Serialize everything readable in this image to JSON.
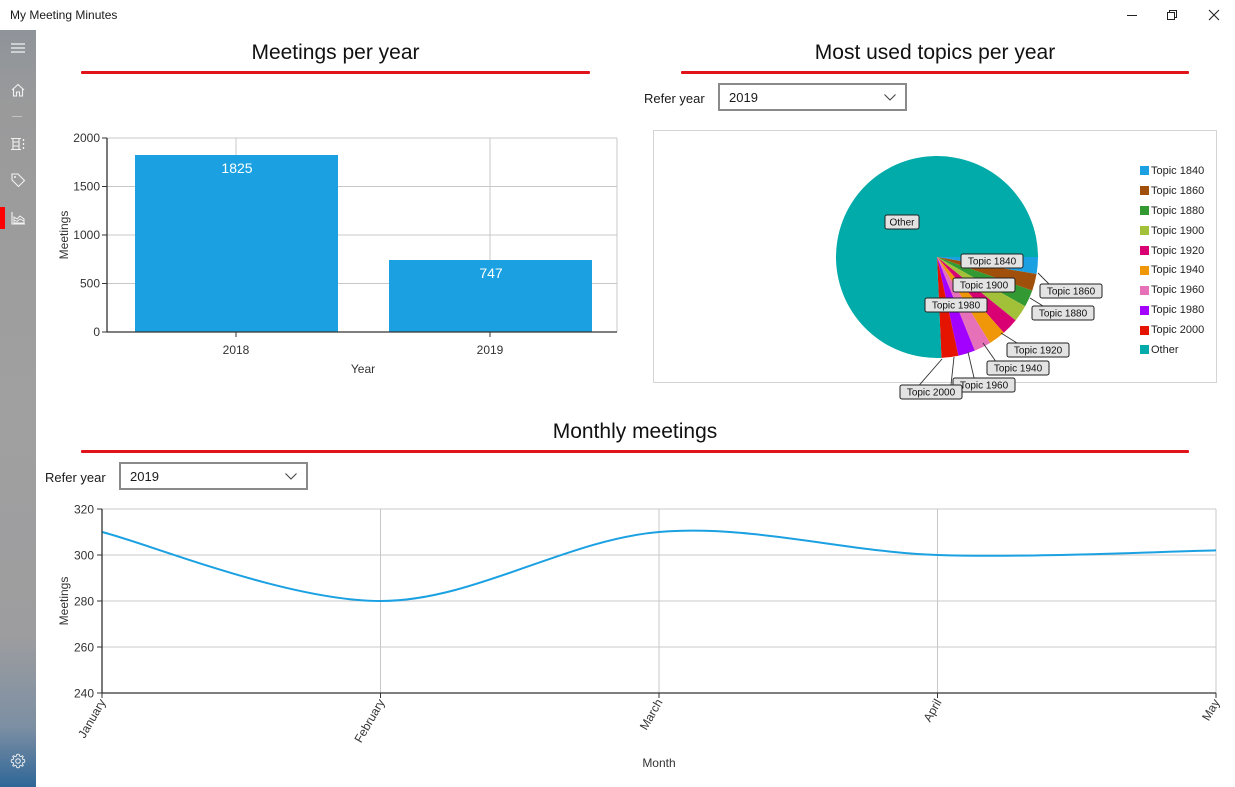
{
  "window": {
    "title": "My Meeting Minutes",
    "controls": {
      "minimize": "minimize",
      "restore": "restore",
      "close": "close"
    }
  },
  "sidebar": {
    "items": [
      {
        "name": "menu",
        "icon": "hamburger-icon"
      },
      {
        "name": "home",
        "icon": "home-icon"
      },
      {
        "name": "meetings",
        "icon": "meetings-list-icon"
      },
      {
        "name": "topics",
        "icon": "tag-icon"
      },
      {
        "name": "statistics",
        "icon": "chart-icon",
        "selected": true
      }
    ],
    "footer": {
      "name": "settings",
      "icon": "gear-icon"
    },
    "selected_color": "#ff0000"
  },
  "sections": {
    "meetings_per_year": {
      "title": "Meetings per year"
    },
    "topics_per_year": {
      "title": "Most used topics per year",
      "refer_label": "Refer year",
      "refer_value": "2019"
    },
    "monthly": {
      "title": "Monthly meetings",
      "refer_label": "Refer year",
      "refer_value": "2019"
    }
  },
  "accent_color": "#e0141a",
  "chart_data": [
    {
      "type": "bar",
      "title": "Meetings per year",
      "categories": [
        "2018",
        "2019"
      ],
      "values": [
        1825,
        747
      ],
      "data_labels": [
        "1825",
        "747"
      ],
      "xlabel": "Year",
      "ylabel": "Meetings",
      "ylim": [
        0,
        2000
      ],
      "yticks": [
        "0",
        "500",
        "1000",
        "1500",
        "2000"
      ],
      "grid": true,
      "color": "#1ba1e2"
    },
    {
      "type": "pie",
      "title": "Most used topics per year",
      "categories": [
        "Topic 1840",
        "Topic 1860",
        "Topic 1880",
        "Topic 1900",
        "Topic 1920",
        "Topic 1940",
        "Topic 1960",
        "Topic 1980",
        "Topic 2000",
        "Other"
      ],
      "values": [
        2.7,
        2.7,
        2.7,
        2.7,
        2.7,
        2.7,
        2.7,
        2.7,
        2.7,
        75.7
      ],
      "colors": [
        "#1ba1e2",
        "#a0500a",
        "#339933",
        "#a2c139",
        "#d80073",
        "#f09609",
        "#e671b8",
        "#a200ff",
        "#e51400",
        "#00aba9"
      ],
      "legend_position": "right"
    },
    {
      "type": "line",
      "title": "Monthly meetings",
      "categories": [
        "January",
        "February",
        "March",
        "April",
        "May"
      ],
      "values": [
        310,
        280,
        310,
        300,
        302
      ],
      "xlabel": "Month",
      "ylabel": "Meetings",
      "ylim": [
        240,
        320
      ],
      "yticks": [
        "240",
        "260",
        "280",
        "300",
        "320"
      ],
      "grid": true,
      "smooth": true,
      "color": "#1ba1e2"
    }
  ]
}
